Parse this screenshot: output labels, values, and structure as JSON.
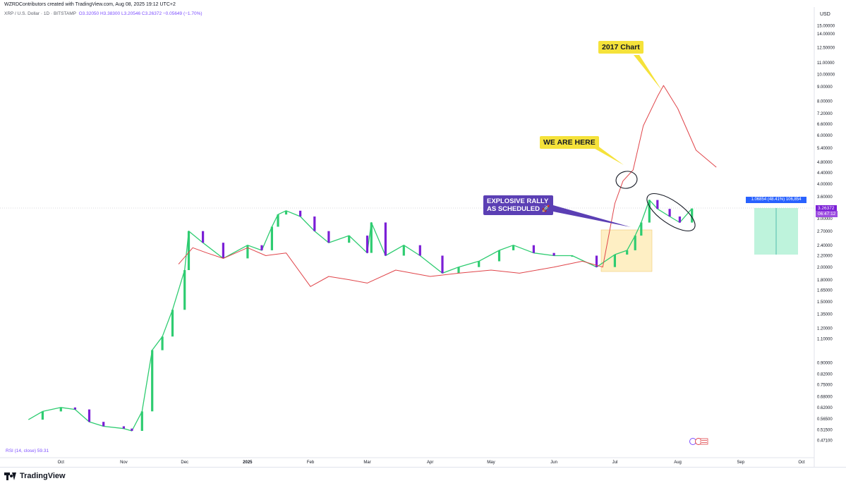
{
  "header": {
    "credit": "WZRDContributors created with TradingView.com, Aug 08, 2025 19:12 UTC+2",
    "symbol": "XRP / U.S. Dollar · 1D · BITSTAMP",
    "ohlc": "O3.32050  H3.38300  L3.20546  C3.26372  −0.05649 (−1.70%)"
  },
  "indicator": "RSI (14, close)  59.31",
  "footer": {
    "brand": "TradingView"
  },
  "annotations": {
    "chart_2017": "2017 Chart",
    "we_are_here": "WE ARE HERE",
    "rally_line1": "EXPLOSIVE RALLY",
    "rally_line2": "AS SCHEDULED 🚀"
  },
  "price_tag": {
    "price": "3.26372",
    "countdown": "06:47:12"
  },
  "measure": {
    "label": "1.06854 (48.41%) 106,854"
  },
  "colors": {
    "up": "#2ecc71",
    "down": "#7b1fd6",
    "overlay": "#e0454a",
    "purple_label": "#5b3fb4",
    "yellow_label": "#f5e23a",
    "box": "#fde9b0",
    "measure_fill": "#a8efd0"
  },
  "chart_data": {
    "type": "line",
    "scale": "log",
    "currency": "USD",
    "ylim": [
      0.43,
      16.5
    ],
    "y_ticks": [
      "15.00000",
      "14.00000",
      "12.50000",
      "11.00000",
      "10.00000",
      "9.00000",
      "8.00000",
      "7.20000",
      "6.60000",
      "6.00000",
      "5.40000",
      "4.80000",
      "4.40000",
      "4.00000",
      "3.60000",
      "3.00000",
      "2.70000",
      "2.40000",
      "2.20000",
      "2.00000",
      "1.80000",
      "1.65000",
      "1.50000",
      "1.35000",
      "1.20000",
      "1.10000",
      "0.90000",
      "0.82000",
      "0.75000",
      "0.68000",
      "0.62000",
      "0.56500",
      "0.51500",
      "0.47100"
    ],
    "x_ticks": [
      "Oct",
      "Nov",
      "Dec",
      "2025",
      "Feb",
      "Mar",
      "Apr",
      "May",
      "Jun",
      "Jul",
      "Aug",
      "Sep",
      "Oct"
    ],
    "series": [
      {
        "name": "XRP / U.S. Dollar",
        "x": [
          "2024-09-15",
          "2024-09-22",
          "2024-10-01",
          "2024-10-08",
          "2024-10-15",
          "2024-10-22",
          "2024-11-01",
          "2024-11-05",
          "2024-11-10",
          "2024-11-15",
          "2024-11-20",
          "2024-11-25",
          "2024-12-01",
          "2024-12-03",
          "2024-12-10",
          "2024-12-20",
          "2025-01-01",
          "2025-01-08",
          "2025-01-13",
          "2025-01-16",
          "2025-01-20",
          "2025-01-27",
          "2025-02-03",
          "2025-02-10",
          "2025-02-20",
          "2025-03-01",
          "2025-03-03",
          "2025-03-10",
          "2025-03-19",
          "2025-03-27",
          "2025-04-07",
          "2025-04-15",
          "2025-04-25",
          "2025-05-05",
          "2025-05-12",
          "2025-05-22",
          "2025-06-01",
          "2025-06-10",
          "2025-06-22",
          "2025-07-01",
          "2025-07-07",
          "2025-07-11",
          "2025-07-14",
          "2025-07-18",
          "2025-07-22",
          "2025-07-28",
          "2025-08-02",
          "2025-08-08"
        ],
        "y": [
          0.56,
          0.6,
          0.62,
          0.61,
          0.55,
          0.53,
          0.52,
          0.51,
          0.6,
          1.0,
          1.12,
          1.4,
          1.95,
          2.7,
          2.45,
          2.15,
          2.4,
          2.3,
          2.8,
          3.1,
          3.2,
          3.05,
          2.7,
          2.45,
          2.6,
          2.25,
          2.9,
          2.2,
          2.4,
          2.2,
          1.9,
          2.0,
          2.1,
          2.3,
          2.4,
          2.25,
          2.2,
          2.2,
          2.0,
          2.22,
          2.3,
          2.6,
          2.9,
          3.5,
          3.25,
          3.05,
          2.9,
          3.26
        ]
      },
      {
        "name": "2017 Chart",
        "x": [
          "2024-11-28",
          "2024-12-05",
          "2024-12-12",
          "2024-12-20",
          "2025-01-01",
          "2025-01-10",
          "2025-01-20",
          "2025-02-01",
          "2025-02-10",
          "2025-02-20",
          "2025-03-01",
          "2025-03-15",
          "2025-04-01",
          "2025-04-15",
          "2025-05-01",
          "2025-05-15",
          "2025-06-01",
          "2025-06-15",
          "2025-06-25",
          "2025-07-01",
          "2025-07-05",
          "2025-07-10",
          "2025-07-15",
          "2025-07-22",
          "2025-07-25",
          "2025-08-01",
          "2025-08-10",
          "2025-08-20"
        ],
        "y": [
          2.05,
          2.35,
          2.25,
          2.15,
          2.35,
          2.2,
          2.25,
          1.7,
          1.85,
          1.8,
          1.75,
          1.95,
          1.85,
          1.9,
          1.95,
          1.9,
          2.0,
          2.1,
          2.0,
          3.4,
          4.1,
          4.5,
          6.5,
          8.3,
          9.1,
          7.5,
          5.3,
          4.6
        ]
      }
    ]
  }
}
